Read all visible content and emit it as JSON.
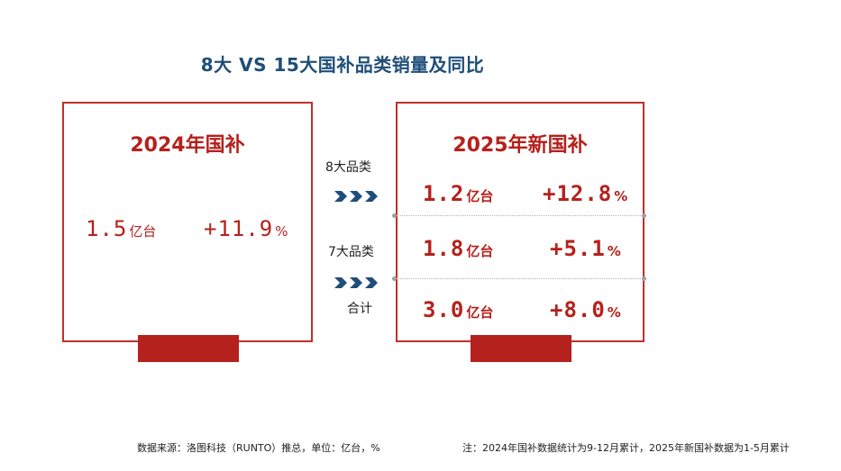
{
  "title": "8大 VS 15大国补品类销量及同比",
  "left_box": {
    "heading": "2024年国补",
    "volume": {
      "num": "1.5",
      "unit": "亿台"
    },
    "growth": {
      "num": "+11.9",
      "unit": "%"
    }
  },
  "middle": {
    "label_8": "8大品类",
    "label_7": "7大品类",
    "label_total": "合计",
    "arrow_color": "#1f4e79"
  },
  "right_box": {
    "heading": "2025年新国补",
    "rows": [
      {
        "volume": {
          "num": "1.2",
          "unit": "亿台"
        },
        "growth": {
          "num": "+12.8",
          "unit": "%"
        }
      },
      {
        "volume": {
          "num": "1.8",
          "unit": "亿台"
        },
        "growth": {
          "num": "+5.1",
          "unit": "%"
        }
      },
      {
        "volume": {
          "num": "3.0",
          "unit": "亿台"
        },
        "growth": {
          "num": "+8.0",
          "unit": "%"
        }
      }
    ]
  },
  "footer": {
    "source": "数据来源：洛图科技（RUNTO）推总，单位：亿台，%",
    "note": "注：2024年国补数据统计为9-12月累计，2025年新国补数据为1-5月累计"
  },
  "colors": {
    "accent_red": "#b5211c",
    "title_blue": "#1f4e79"
  }
}
